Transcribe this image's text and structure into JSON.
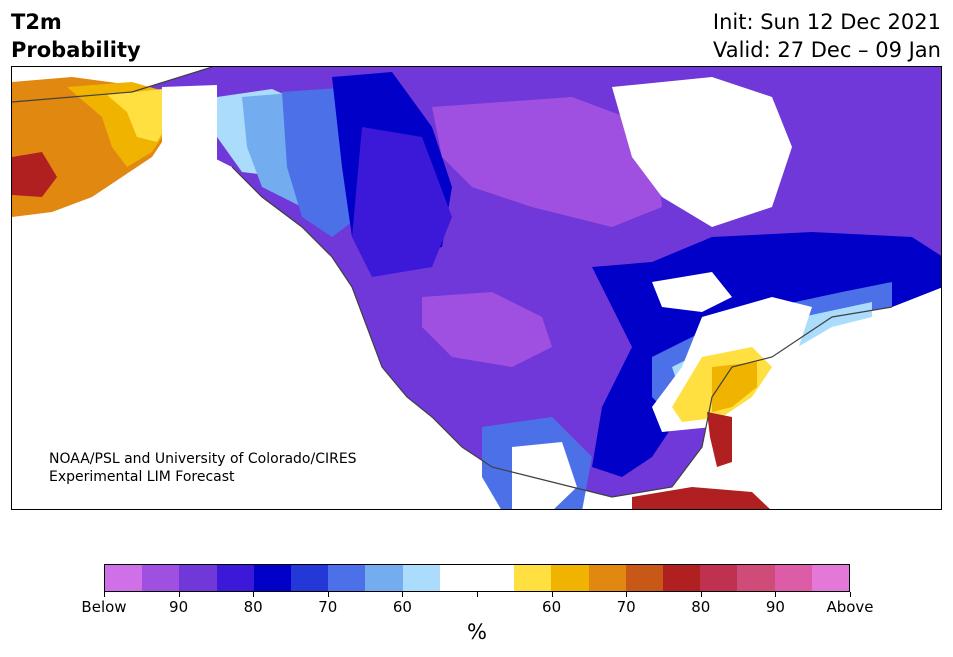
{
  "header": {
    "title_line1": "T2m",
    "title_line2": "Probability",
    "init": "Init: Sun 12 Dec 2021",
    "valid": "Valid: 27 Dec – 09 Jan"
  },
  "credit": {
    "line1": "NOAA/PSL and University of Colorado/CIRES",
    "line2": "Experimental LIM Forecast"
  },
  "colorbar": {
    "colors": [
      "#d070e8",
      "#a050e0",
      "#7038d8",
      "#3c18d8",
      "#0000c8",
      "#2438d8",
      "#4c70e8",
      "#74acf0",
      "#acdcfc",
      "#ffffff",
      "#ffffff",
      "#ffe040",
      "#f0b400",
      "#e08810",
      "#c85818",
      "#b02020",
      "#c03050",
      "#d04c78",
      "#dc5ca8",
      "#e478d8"
    ],
    "tick_labels": [
      "Below",
      "90",
      "80",
      "70",
      "60",
      "",
      "60",
      "70",
      "80",
      "90",
      "Above"
    ],
    "unit_label": "%"
  },
  "colors": {
    "purple": "#7038d8",
    "violet": "#a050e0",
    "deep_blue": "#0000c8",
    "mid_blue": "#3c18d8",
    "white_land": "#ffffff",
    "orange": "#e08810",
    "red": "#b02020",
    "yellow": "#ffe040"
  }
}
